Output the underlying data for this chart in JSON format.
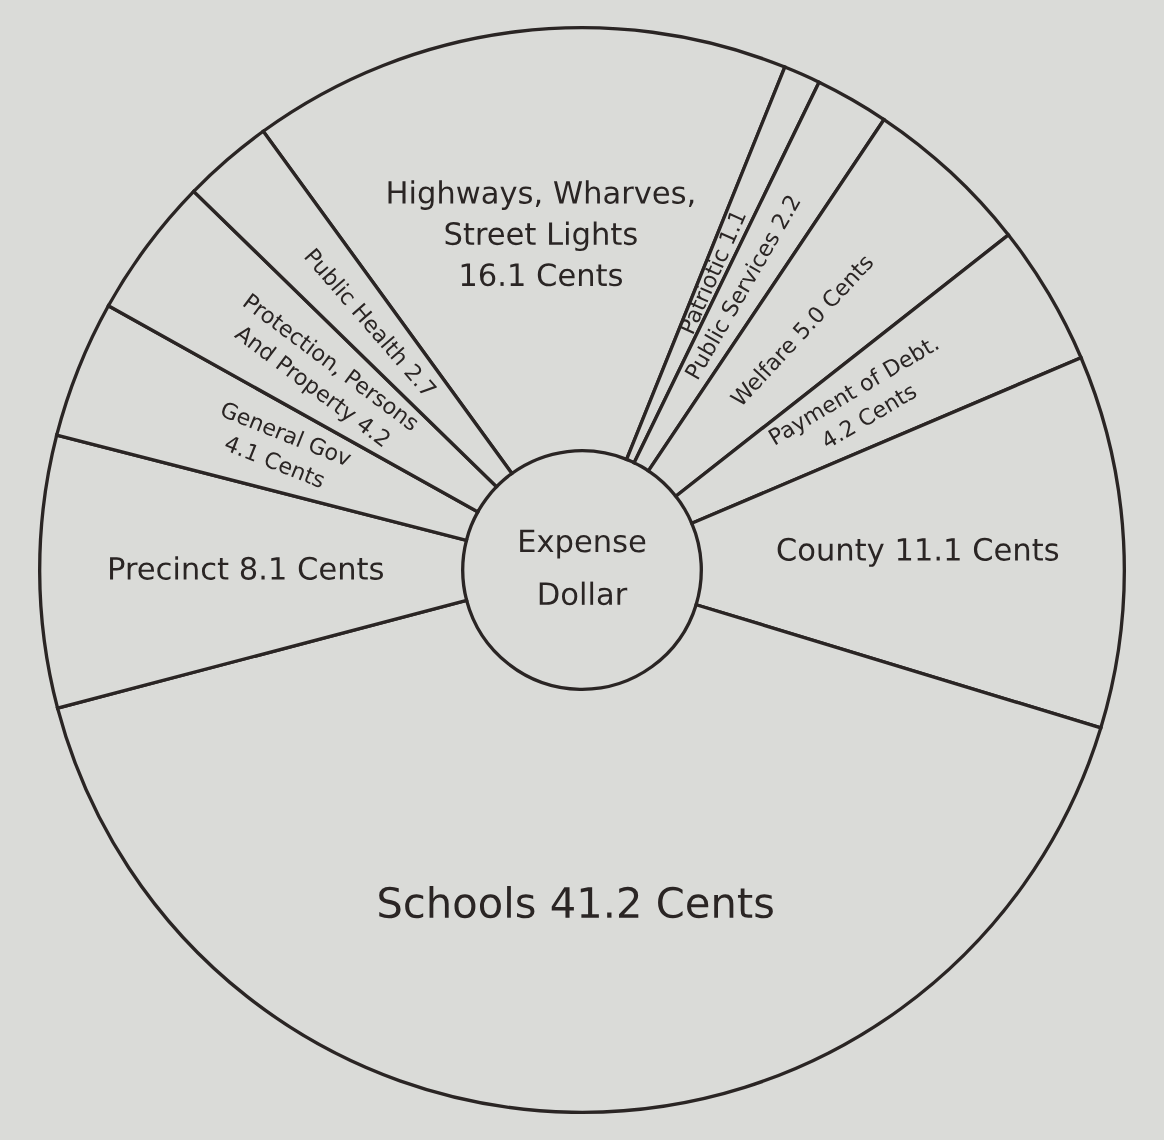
{
  "chart_data": {
    "type": "donut",
    "title": "Expense\nDollar",
    "categories": [
      "Highways, Wharves,\nStreet Lights\n16.1 Cents",
      "Patriotic 1.1",
      "Public Services 2.2",
      "Welfare 5.0 Cents",
      "Payment of Debt.\n4.2 Cents",
      "County 11.1 Cents",
      "Schools 41.2 Cents",
      "Precinct 8.1 Cents",
      "General Gov\n4.1 Cents",
      "Protection, Persons\nAnd Property 4.2",
      "Public Health 2.7"
    ],
    "values": [
      16.1,
      1.1,
      2.2,
      5.0,
      4.2,
      11.1,
      41.2,
      8.1,
      4.1,
      4.2,
      2.7
    ],
    "colors": [
      "#dadbd8",
      "#dadbd8",
      "#dadbd8",
      "#dadbd8",
      "#dadbd8",
      "#dadbd8",
      "#dadbd8",
      "#dadbd8",
      "#dadbd8",
      "#dadbd8",
      "#dadbd8"
    ],
    "legend": false
  }
}
